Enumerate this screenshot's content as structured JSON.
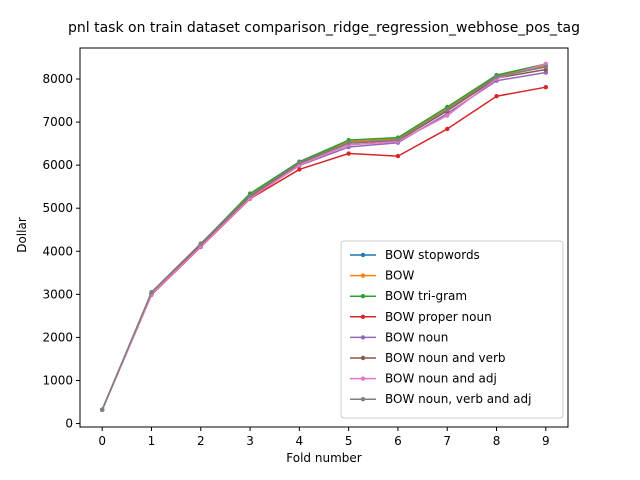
{
  "chart_data": {
    "type": "line",
    "title": "pnl task on train dataset comparison_ridge_regression_webhose_pos_tag",
    "xlabel": "Fold number",
    "ylabel": "Dollar",
    "x": [
      0,
      1,
      2,
      3,
      4,
      5,
      6,
      7,
      8,
      9
    ],
    "xlim": [
      -0.45,
      9.45
    ],
    "ylim": [
      -80,
      8720
    ],
    "xticks": [
      0,
      1,
      2,
      3,
      4,
      5,
      6,
      7,
      8,
      9
    ],
    "yticks": [
      0,
      1000,
      2000,
      3000,
      4000,
      5000,
      6000,
      7000,
      8000
    ],
    "grid": false,
    "legend_position": "lower right",
    "series": [
      {
        "name": "BOW stopwords",
        "color": "#1f77b4",
        "values": [
          320,
          3020,
          4150,
          5280,
          6050,
          6540,
          6600,
          7300,
          8070,
          8300
        ]
      },
      {
        "name": "BOW",
        "color": "#ff7f0e",
        "values": [
          320,
          3020,
          4160,
          5300,
          6060,
          6550,
          6610,
          7310,
          8080,
          8320
        ]
      },
      {
        "name": "BOW tri-gram",
        "color": "#2ca02c",
        "values": [
          320,
          3030,
          4170,
          5340,
          6080,
          6580,
          6640,
          7350,
          8090,
          8350
        ]
      },
      {
        "name": "BOW proper noun",
        "color": "#d62728",
        "values": [
          320,
          2990,
          4100,
          5220,
          5900,
          6270,
          6210,
          6840,
          7600,
          7810
        ]
      },
      {
        "name": "BOW noun",
        "color": "#9467bd",
        "values": [
          320,
          3000,
          4120,
          5240,
          5990,
          6420,
          6520,
          7200,
          7960,
          8150
        ]
      },
      {
        "name": "BOW noun and verb",
        "color": "#8c564b",
        "values": [
          320,
          3010,
          4140,
          5270,
          6040,
          6510,
          6570,
          7260,
          8020,
          8220
        ]
      },
      {
        "name": "BOW noun and adj",
        "color": "#e377c2",
        "values": [
          320,
          3000,
          4110,
          5230,
          6000,
          6470,
          6550,
          7150,
          8010,
          8350
        ]
      },
      {
        "name": "BOW noun, verb and adj",
        "color": "#7f7f7f",
        "values": [
          320,
          3050,
          4180,
          5290,
          6060,
          6520,
          6590,
          7290,
          8050,
          8280
        ]
      }
    ]
  }
}
